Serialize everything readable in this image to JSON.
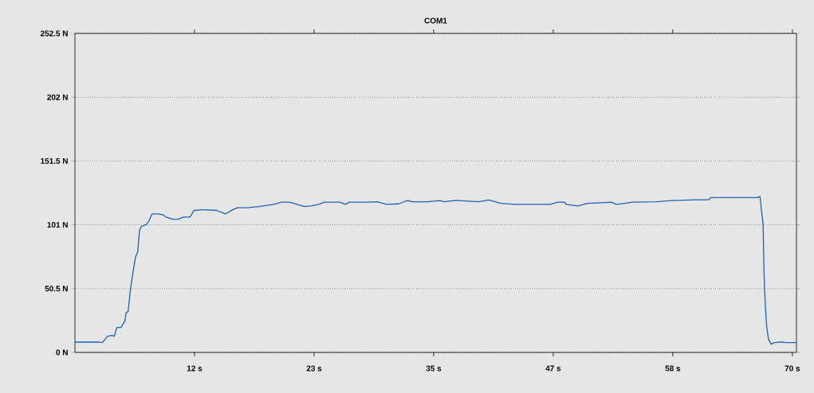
{
  "chart_data": {
    "type": "line",
    "title": "COM1",
    "xlim": [
      0,
      70.4
    ],
    "ylim": [
      0,
      252.5
    ],
    "xticks": [
      {
        "value": 11.667,
        "label": "12 s"
      },
      {
        "value": 23.333,
        "label": "23 s"
      },
      {
        "value": 35,
        "label": "35 s"
      },
      {
        "value": 46.667,
        "label": "47 s"
      },
      {
        "value": 58.333,
        "label": "58 s"
      },
      {
        "value": 70,
        "label": "70 s"
      }
    ],
    "yticks": [
      {
        "value": 0,
        "label": "0 N"
      },
      {
        "value": 50.5,
        "label": "50.5 N"
      },
      {
        "value": 101,
        "label": "101 N"
      },
      {
        "value": 151.5,
        "label": "151.5 N"
      },
      {
        "value": 202,
        "label": "202 N"
      },
      {
        "value": 252.5,
        "label": "252.5 N"
      }
    ],
    "grid": "y",
    "marker": "none",
    "line_style": "solid",
    "x": [
      0,
      2.26,
      2.67,
      3.19,
      3.58,
      3.84,
      4.1,
      4.49,
      4.87,
      5.0,
      5.19,
      5.39,
      5.65,
      5.91,
      6.12,
      6.3,
      6.48,
      6.95,
      7.21,
      7.52,
      8.11,
      8.63,
      8.89,
      9.54,
      10.06,
      10.58,
      11.22,
      11.61,
      12.39,
      13.82,
      14.68,
      15.5,
      15.89,
      16.8,
      17.97,
      19.39,
      20.17,
      20.95,
      21.47,
      22.38,
      23.02,
      23.8,
      24.32,
      25.87,
      26.39,
      26.78,
      28.47,
      29.5,
      30.41,
      31.58,
      32.49,
      32.88,
      34.42,
      35.6,
      35.99,
      37.15,
      39.36,
      40.39,
      41.56,
      42.99,
      46.36,
      47.13,
      47.78,
      47.91,
      49.08,
      49.99,
      52.32,
      52.84,
      53.61,
      54.39,
      56.72,
      58.28,
      60.61,
      61.78,
      62.04,
      66.58,
      66.84,
      66.97,
      67.15,
      67.23,
      67.36,
      67.49,
      67.67,
      67.93,
      68.26,
      68.91,
      69.43,
      70.4
    ],
    "series": [
      {
        "color": "#1b63b3",
        "values": [
          8.2,
          8.2,
          7.8,
          12.8,
          13.5,
          12.8,
          19.8,
          19.8,
          25,
          31.4,
          32.4,
          48.2,
          62.9,
          75.5,
          79.7,
          96.6,
          99.7,
          101.2,
          104,
          109.6,
          109.6,
          108.8,
          107.1,
          105.4,
          105.4,
          107.1,
          107.1,
          112.4,
          113,
          112.4,
          109.6,
          113.4,
          114.5,
          114.5,
          115.5,
          117.2,
          118.9,
          118.9,
          117.6,
          115.5,
          116,
          117.2,
          118.9,
          118.9,
          117.2,
          118.9,
          118.9,
          119.3,
          117.2,
          117.6,
          120.4,
          119.3,
          119.3,
          120.2,
          119.3,
          120.4,
          119.3,
          120.6,
          118,
          117.2,
          117.2,
          118.9,
          118.9,
          117.2,
          116,
          118,
          118.9,
          117.2,
          118,
          118.9,
          119.3,
          120.2,
          120.8,
          120.8,
          122.5,
          122.5,
          123.5,
          113.4,
          100.8,
          62.9,
          37.7,
          20.8,
          10.3,
          6.5,
          7.8,
          8.2,
          7.8,
          7.8
        ]
      }
    ]
  }
}
